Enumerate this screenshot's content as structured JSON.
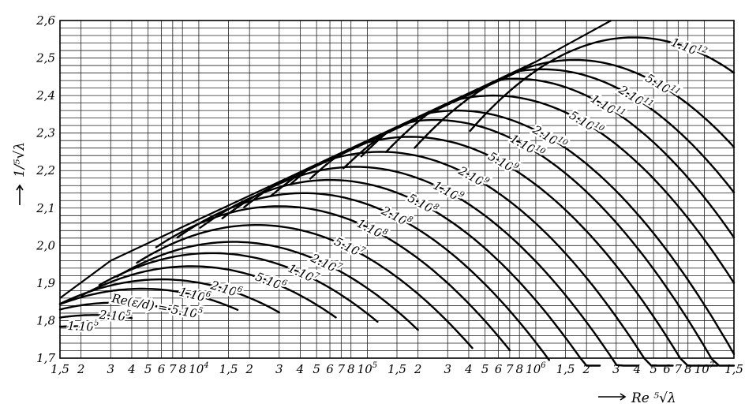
{
  "chart_data": {
    "type": "line",
    "title": "",
    "xlabel": "Re ⁵√λ",
    "ylabel": "1/⁵√λ",
    "x_scale": "log",
    "xlim": [
      1500.0,
      15000000.0
    ],
    "ylim": [
      1.7,
      2.6
    ],
    "grid": true,
    "y_ticks": [
      "1,7",
      "1,8",
      "1,9",
      "2,0",
      "2,1",
      "2,2",
      "2,3",
      "2,4",
      "2,5",
      "2,6"
    ],
    "x_ticks": [
      {
        "value": 1500,
        "base": "1,5",
        "exp": ""
      },
      {
        "value": 2000,
        "base": "2",
        "exp": ""
      },
      {
        "value": 3000,
        "base": "3",
        "exp": ""
      },
      {
        "value": 4000,
        "base": "4",
        "exp": ""
      },
      {
        "value": 5000,
        "base": "5",
        "exp": ""
      },
      {
        "value": 6000,
        "base": "6",
        "exp": ""
      },
      {
        "value": 7000,
        "base": "7",
        "exp": ""
      },
      {
        "value": 8000,
        "base": "8",
        "exp": ""
      },
      {
        "value": 10000,
        "base": "10",
        "exp": "4"
      },
      {
        "value": 15000,
        "base": "1,5",
        "exp": ""
      },
      {
        "value": 20000,
        "base": "2",
        "exp": ""
      },
      {
        "value": 30000,
        "base": "3",
        "exp": ""
      },
      {
        "value": 40000,
        "base": "4",
        "exp": ""
      },
      {
        "value": 50000,
        "base": "5",
        "exp": ""
      },
      {
        "value": 60000,
        "base": "6",
        "exp": ""
      },
      {
        "value": 70000,
        "base": "7",
        "exp": ""
      },
      {
        "value": 80000,
        "base": "8",
        "exp": ""
      },
      {
        "value": 100000,
        "base": "10",
        "exp": "5"
      },
      {
        "value": 150000,
        "base": "1,5",
        "exp": ""
      },
      {
        "value": 200000,
        "base": "2",
        "exp": ""
      },
      {
        "value": 300000,
        "base": "3",
        "exp": ""
      },
      {
        "value": 400000,
        "base": "4",
        "exp": ""
      },
      {
        "value": 500000,
        "base": "5",
        "exp": ""
      },
      {
        "value": 600000,
        "base": "6",
        "exp": ""
      },
      {
        "value": 700000,
        "base": "7",
        "exp": ""
      },
      {
        "value": 800000,
        "base": "8",
        "exp": ""
      },
      {
        "value": 1000000,
        "base": "10",
        "exp": "6"
      },
      {
        "value": 1500000,
        "base": "1,5",
        "exp": ""
      },
      {
        "value": 2000000,
        "base": "2",
        "exp": ""
      },
      {
        "value": 3000000,
        "base": "3",
        "exp": ""
      },
      {
        "value": 4000000,
        "base": "4",
        "exp": ""
      },
      {
        "value": 5000000,
        "base": "5",
        "exp": ""
      },
      {
        "value": 6000000,
        "base": "6",
        "exp": ""
      },
      {
        "value": 7000000,
        "base": "7",
        "exp": ""
      },
      {
        "value": 8000000,
        "base": "8",
        "exp": ""
      },
      {
        "value": 10000000,
        "base": "10",
        "exp": "7"
      },
      {
        "value": 15000000,
        "base": "1,5",
        "exp": ""
      }
    ],
    "envelope": {
      "x": [
        1500,
        3000,
        10000,
        30000,
        100000,
        300000,
        1000000,
        2800000
      ],
      "y": [
        1.86,
        1.96,
        2.07,
        2.17,
        2.28,
        2.38,
        2.49,
        2.6
      ]
    },
    "series": [
      {
        "name": "1.10^5",
        "label": "1.10",
        "exp": "5",
        "peak_x": 1800,
        "peak_y": 1.785,
        "end_x": 2300.0
      },
      {
        "name": "2.10^5",
        "label": "2.10",
        "exp": "5",
        "peak_x": 2400,
        "peak_y": 1.815,
        "end_x": 4000.0
      },
      {
        "name": "5.10^5",
        "label": "Re(ε/d) = 5.10",
        "exp": "5",
        "peak_x": 3200,
        "peak_y": 1.848,
        "end_x": 9000.0
      },
      {
        "name": "1.10^6",
        "label": "1.10",
        "exp": "6",
        "peak_x": 4600,
        "peak_y": 1.885,
        "end_x": 17000.0
      },
      {
        "name": "2.10^6",
        "label": "2.10",
        "exp": "6",
        "peak_x": 6000,
        "peak_y": 1.91,
        "end_x": 30000.0
      },
      {
        "name": "5.10^6",
        "label": "5.10",
        "exp": "6",
        "peak_x": 9000,
        "peak_y": 1.945,
        "end_x": 65000.0
      },
      {
        "name": "1.10^7",
        "label": "1.10",
        "exp": "7",
        "peak_x": 12000,
        "peak_y": 1.98,
        "end_x": 115000.0
      },
      {
        "name": "2.10^7",
        "label": "2.10",
        "exp": "7",
        "peak_x": 16000,
        "peak_y": 2.01,
        "end_x": 200000.0
      },
      {
        "name": "5.10^7",
        "label": "5.10",
        "exp": "7",
        "peak_x": 22000,
        "peak_y": 2.055,
        "end_x": 420000.0
      },
      {
        "name": "1.10^8",
        "label": "1.10",
        "exp": "8",
        "peak_x": 30000,
        "peak_y": 2.105,
        "end_x": 700000.0
      },
      {
        "name": "2.10^8",
        "label": "2.10",
        "exp": "8",
        "peak_x": 42000,
        "peak_y": 2.14,
        "end_x": 1200000.0
      },
      {
        "name": "5.10^8",
        "label": "5.10",
        "exp": "8",
        "peak_x": 60000,
        "peak_y": 2.175,
        "end_x": 2400000.0
      },
      {
        "name": "1.10^9",
        "label": "1.10",
        "exp": "9",
        "peak_x": 85000,
        "peak_y": 2.21,
        "end_x": 4000000.0
      },
      {
        "name": "2.10^9",
        "label": "2.10",
        "exp": "9",
        "peak_x": 120000,
        "peak_y": 2.25,
        "end_x": 6500000.0
      },
      {
        "name": "5.10^9",
        "label": "5.10",
        "exp": "9",
        "peak_x": 180000,
        "peak_y": 2.29,
        "end_x": 12000000.0
      },
      {
        "name": "1.10^10",
        "label": "1.10",
        "exp": "10",
        "peak_x": 250000,
        "peak_y": 2.335,
        "end_x": 15000000.0
      },
      {
        "name": "2.10^10",
        "label": "2.10",
        "exp": "10",
        "peak_x": 340000,
        "peak_y": 2.36,
        "end_x": 15000000.0
      },
      {
        "name": "5.10^10",
        "label": "5.10",
        "exp": "10",
        "peak_x": 560000,
        "peak_y": 2.4,
        "end_x": 15000000.0
      },
      {
        "name": "1.10^11",
        "label": "1.10",
        "exp": "11",
        "peak_x": 750000,
        "peak_y": 2.445,
        "end_x": 15000000.0
      },
      {
        "name": "2.10^11",
        "label": "2.10",
        "exp": "11",
        "peak_x": 1100000,
        "peak_y": 2.47,
        "end_x": 15000000.0
      },
      {
        "name": "5.10^11",
        "label": "5.10",
        "exp": "11",
        "peak_x": 1700000,
        "peak_y": 2.495,
        "end_x": 15000000.0
      },
      {
        "name": "1.10^12",
        "label": "1.10",
        "exp": "12",
        "peak_x": 3800000,
        "peak_y": 2.555,
        "end_x": 15000000.0
      }
    ]
  }
}
